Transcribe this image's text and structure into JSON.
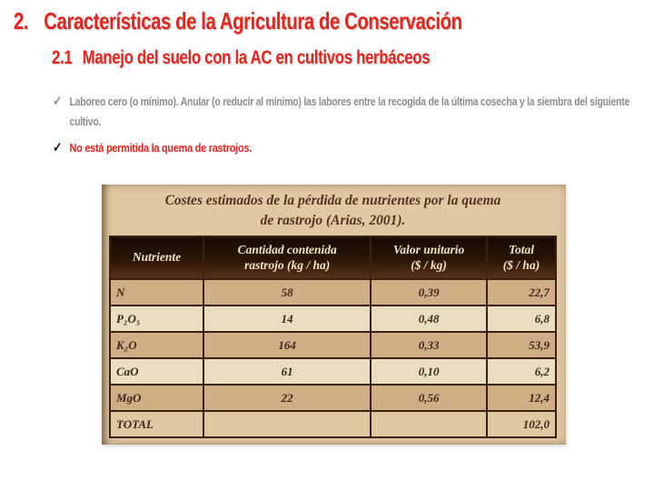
{
  "colors": {
    "title_red": "#e8231c",
    "bullet_gray": "#8d8d8d",
    "check_black": "#1c1c1c",
    "scan_background": "#e0c9a2",
    "scan_title_text": "#57331c",
    "table_header_bg": "#2b1507",
    "table_header_text": "#f2e3c2",
    "row_dark_tan": "#cfae85",
    "row_light_cream": "#e9ddc2",
    "grid_border": "#3a2112",
    "cell_text": "#42261a"
  },
  "title": {
    "number": "2.",
    "text": "Características de la Agricultura de Conservación"
  },
  "subtitle": {
    "number": "2.1",
    "text": "Manejo del suelo con la AC en cultivos herbáceos"
  },
  "bullets": [
    {
      "icon": "✓",
      "text": "Laboreo cero (o mínimo). Anular (o reducir al mínimo) las labores entre la recogida de la última cosecha y la siembra del siguiente cultivo."
    },
    {
      "icon": "✓",
      "text": "No está permitida la quema de rastrojos."
    }
  ],
  "table": {
    "title_line1": "Costes estimados de la pérdida de nutrientes por la quema",
    "title_line2": "de rastrojo (Arias, 2001).",
    "columns": [
      "Nutriente",
      "Cantidad contenida\nrastrojo (kg / ha)",
      "Valor unitario\n($ / kg)",
      "Total\n($ / ha)"
    ],
    "rows": [
      {
        "nutriente": "N",
        "cantidad": "58",
        "valor": "0,39",
        "total": "22,7"
      },
      {
        "nutriente": "P₂O₅",
        "cantidad": "14",
        "valor": "0,48",
        "total": "6,8"
      },
      {
        "nutriente": "K₂O",
        "cantidad": "164",
        "valor": "0,33",
        "total": "53,9"
      },
      {
        "nutriente": "CaO",
        "cantidad": "61",
        "valor": "0,10",
        "total": "6,2"
      },
      {
        "nutriente": "MgO",
        "cantidad": "22",
        "valor": "0,56",
        "total": "12,4"
      },
      {
        "nutriente": "TOTAL",
        "cantidad": "",
        "valor": "",
        "total": "102,0"
      }
    ]
  }
}
